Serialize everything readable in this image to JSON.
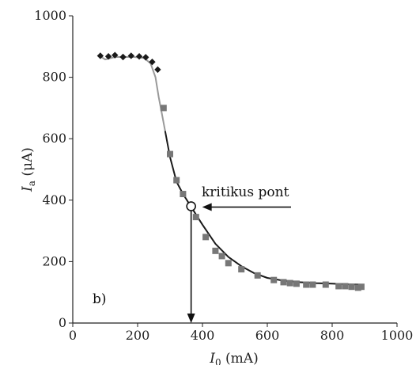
{
  "chart_data": {
    "type": "scatter",
    "panel_label": "b)",
    "xlabel": {
      "symbol": "I",
      "subscript": "0",
      "unit": " (mA)"
    },
    "ylabel": {
      "symbol": "I",
      "subscript": "a",
      "unit": " (μA)"
    },
    "xlim": [
      0,
      1000
    ],
    "ylim": [
      0,
      1000
    ],
    "xticks": [
      0,
      200,
      400,
      600,
      800,
      1000
    ],
    "yticks": [
      0,
      200,
      400,
      600,
      800,
      1000
    ],
    "grid": false,
    "series": [
      {
        "marker": "diamond",
        "color": "#1a1a1a",
        "x": [
          85,
          110,
          130,
          155,
          180,
          205,
          225,
          245,
          262
        ],
        "y": [
          870,
          868,
          872,
          866,
          870,
          868,
          865,
          850,
          825
        ]
      },
      {
        "marker": "square",
        "color": "#777777",
        "x": [
          280,
          300,
          320,
          340,
          380,
          410,
          440,
          460,
          480,
          520,
          570,
          620,
          650,
          670,
          690,
          720,
          740,
          780,
          820,
          840,
          860,
          880,
          890
        ],
        "y": [
          700,
          550,
          465,
          420,
          345,
          280,
          235,
          218,
          195,
          175,
          155,
          140,
          133,
          130,
          128,
          125,
          125,
          125,
          120,
          120,
          118,
          115,
          118
        ]
      }
    ],
    "fit_curve": {
      "colors": [
        "#999999",
        "#1a1a1a"
      ],
      "x": [
        85,
        100,
        130,
        160,
        190,
        220,
        240,
        255,
        265,
        275,
        285,
        300,
        320,
        340,
        365,
        400,
        440,
        480,
        520,
        560,
        600,
        650,
        700,
        750,
        800,
        850,
        890
      ],
      "y": [
        868,
        858,
        866,
        866,
        866,
        863,
        845,
        800,
        735,
        680,
        625,
        540,
        460,
        420,
        378,
        320,
        258,
        215,
        185,
        162,
        147,
        138,
        133,
        130,
        128,
        126,
        125
      ]
    },
    "annotation": {
      "text": "kritikus pont",
      "point": [
        365,
        380
      ]
    }
  }
}
